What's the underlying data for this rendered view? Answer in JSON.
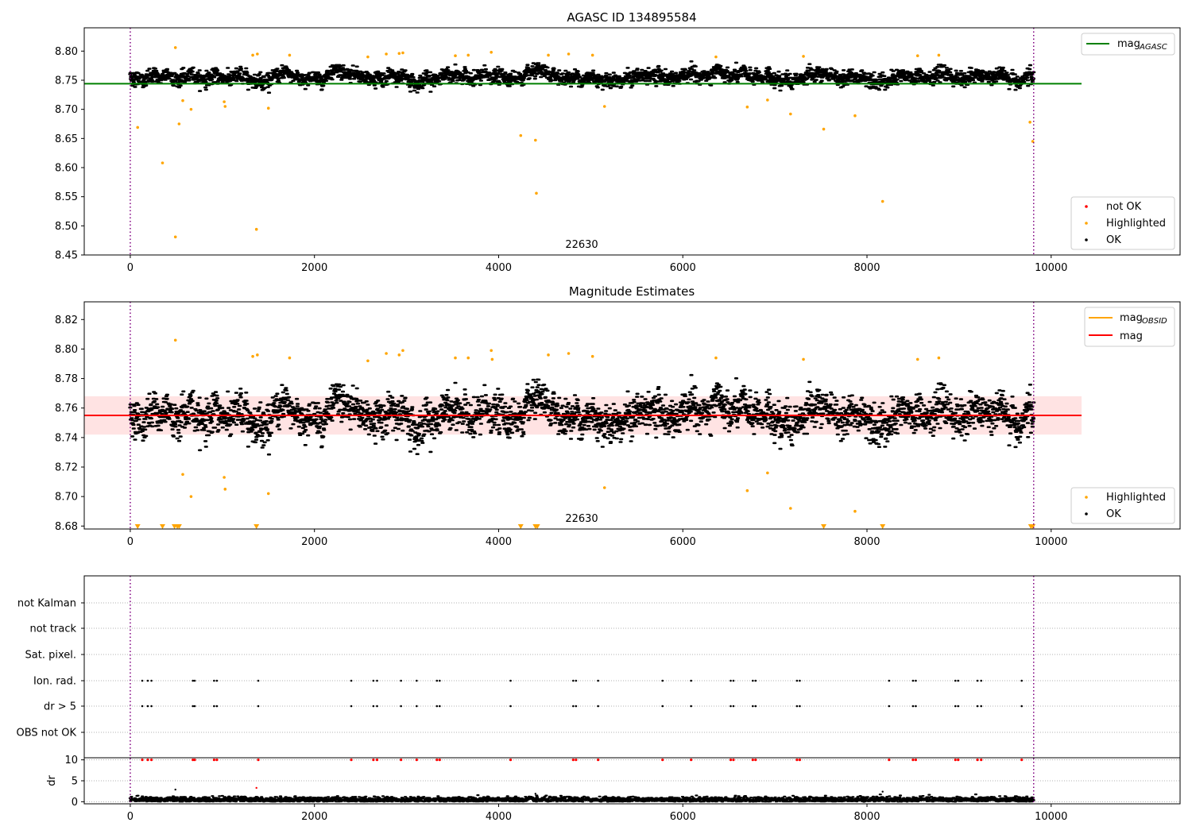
{
  "chart_data": [
    {
      "type": "scatter",
      "title": "AGASC ID 134895584",
      "xlim": [
        -500,
        11400
      ],
      "ylim": [
        8.45,
        8.84
      ],
      "x_ticks": [
        0,
        2000,
        4000,
        6000,
        8000,
        10000
      ],
      "y_ticks": [
        8.45,
        8.5,
        8.55,
        8.6,
        8.65,
        8.7,
        8.75,
        8.8
      ],
      "grid": false,
      "annotation": "22630",
      "vlines": [
        0,
        9810
      ],
      "hline": {
        "name": "mag$_{AGASC}$",
        "display_name": "mag",
        "subscript": "AGASC",
        "y": 8.744,
        "x_range": [
          -500,
          10330
        ],
        "color": "#008000"
      },
      "legend_lines": [
        {
          "name": "mag",
          "subscript": "AGASC",
          "color": "#008000"
        }
      ],
      "legend_lines_placement": "top-right",
      "legend_points": [
        {
          "name": "not OK",
          "color": "#ff0000"
        },
        {
          "name": "Highlighted",
          "color": "#ffa500"
        },
        {
          "name": "OK",
          "color": "#000000"
        }
      ],
      "legend_points_placement": "lower-right",
      "series": [
        {
          "name": "OK",
          "color": "#000000",
          "x_range": [
            0,
            9810
          ],
          "y_mean": 8.755,
          "y_spread": 0.012
        },
        {
          "name": "Highlighted",
          "color": "#ffa500",
          "points": [
            [
              80,
              8.669
            ],
            [
              350,
              8.608
            ],
            [
              490,
              8.806
            ],
            [
              490,
              8.481
            ],
            [
              530,
              8.675
            ],
            [
              570,
              8.715
            ],
            [
              660,
              8.7
            ],
            [
              1020,
              8.713
            ],
            [
              1030,
              8.705
            ],
            [
              1330,
              8.793
            ],
            [
              1370,
              8.494
            ],
            [
              1380,
              8.795
            ],
            [
              1500,
              8.702
            ],
            [
              1730,
              8.793
            ],
            [
              2580,
              8.79
            ],
            [
              2780,
              8.795
            ],
            [
              2920,
              8.796
            ],
            [
              2960,
              8.797
            ],
            [
              3530,
              8.792
            ],
            [
              3670,
              8.793
            ],
            [
              3920,
              8.798
            ],
            [
              4240,
              8.655
            ],
            [
              4400,
              8.647
            ],
            [
              4410,
              8.556
            ],
            [
              4540,
              8.793
            ],
            [
              4760,
              8.795
            ],
            [
              5020,
              8.793
            ],
            [
              5150,
              8.705
            ],
            [
              6360,
              8.79
            ],
            [
              6700,
              8.704
            ],
            [
              6920,
              8.716
            ],
            [
              7170,
              8.692
            ],
            [
              7310,
              8.791
            ],
            [
              7530,
              8.666
            ],
            [
              7870,
              8.689
            ],
            [
              8170,
              8.542
            ],
            [
              8550,
              8.792
            ],
            [
              8780,
              8.793
            ],
            [
              9770,
              8.678
            ],
            [
              9800,
              8.645
            ]
          ]
        }
      ]
    },
    {
      "type": "scatter",
      "title": "Magnitude Estimates",
      "xlim": [
        -500,
        11400
      ],
      "ylim": [
        8.678,
        8.832
      ],
      "x_ticks": [
        0,
        2000,
        4000,
        6000,
        8000,
        10000
      ],
      "y_ticks": [
        8.68,
        8.7,
        8.72,
        8.74,
        8.76,
        8.78,
        8.8,
        8.82
      ],
      "grid": false,
      "annotation": "22630",
      "vlines": [
        0,
        9810
      ],
      "band": {
        "y_low": 8.742,
        "y_high": 8.768,
        "x_range": [
          -500,
          10330
        ],
        "color": "#ff9999"
      },
      "hline": {
        "name": "mag",
        "y": 8.755,
        "x_range": [
          -500,
          10330
        ],
        "color": "#ff0000"
      },
      "obsid_line": {
        "name": "mag$_{OBSID}$",
        "display_name": "mag",
        "subscript": "OBSID",
        "y": 8.755,
        "x_range": [
          0,
          9810
        ],
        "color": "#ffa500"
      },
      "legend_lines": [
        {
          "name": "mag",
          "subscript": "OBSID",
          "color": "#ffa500"
        },
        {
          "name": "mag",
          "subscript": "",
          "color": "#ff0000"
        }
      ],
      "legend_lines_placement": "top-right",
      "legend_points": [
        {
          "name": "Highlighted",
          "color": "#ffa500"
        },
        {
          "name": "OK",
          "color": "#000000"
        }
      ],
      "legend_points_placement": "lower-right",
      "series": [
        {
          "name": "OK",
          "color": "#000000",
          "x_range": [
            0,
            9810
          ],
          "y_mean": 8.755,
          "y_spread": 0.012
        },
        {
          "name": "Highlighted",
          "color": "#ffa500",
          "points": [
            [
              490,
              8.806
            ],
            [
              570,
              8.715
            ],
            [
              660,
              8.7
            ],
            [
              1020,
              8.713
            ],
            [
              1030,
              8.705
            ],
            [
              1330,
              8.795
            ],
            [
              1380,
              8.796
            ],
            [
              1500,
              8.702
            ],
            [
              1730,
              8.794
            ],
            [
              2580,
              8.792
            ],
            [
              2780,
              8.797
            ],
            [
              2920,
              8.796
            ],
            [
              2960,
              8.799
            ],
            [
              3530,
              8.794
            ],
            [
              3670,
              8.794
            ],
            [
              3920,
              8.799
            ],
            [
              3930,
              8.793
            ],
            [
              4540,
              8.796
            ],
            [
              4760,
              8.797
            ],
            [
              5020,
              8.795
            ],
            [
              5150,
              8.706
            ],
            [
              6360,
              8.794
            ],
            [
              6700,
              8.704
            ],
            [
              6920,
              8.716
            ],
            [
              7170,
              8.692
            ],
            [
              7310,
              8.793
            ],
            [
              7870,
              8.69
            ],
            [
              8550,
              8.793
            ],
            [
              8780,
              8.794
            ]
          ]
        },
        {
          "name": "Highlighted (off scale)",
          "color": "#ffa500",
          "marker": "triangle-down",
          "x": [
            80,
            350,
            480,
            510,
            530,
            1370,
            4240,
            4400,
            4420,
            7530,
            8170,
            9780,
            9800
          ]
        }
      ]
    },
    {
      "type": "scatter",
      "title": "",
      "xlim": [
        -500,
        11400
      ],
      "x_ticks": [
        0,
        2000,
        4000,
        6000,
        8000,
        10000
      ],
      "vlines": [
        0,
        9810
      ],
      "flag_rows": [
        "not Kalman",
        "not track",
        "Sat. pixel.",
        "Ion. rad.",
        "dr > 5",
        "OBS not OK"
      ],
      "flags": {
        "Ion. rad.": [
          130,
          190,
          230,
          680,
          700,
          910,
          940,
          1390,
          2400,
          2640,
          2680,
          2940,
          3110,
          3330,
          3360,
          4130,
          4810,
          4840,
          5080,
          5780,
          6090,
          6520,
          6550,
          6760,
          6790,
          7240,
          7270,
          8240,
          8500,
          8530,
          8960,
          8990,
          9200,
          9240,
          9680
        ],
        "dr > 5": [
          130,
          190,
          230,
          680,
          700,
          910,
          940,
          1390,
          2400,
          2640,
          2680,
          2940,
          3110,
          3330,
          3360,
          4130,
          4810,
          4840,
          5080,
          5780,
          6090,
          6520,
          6550,
          6760,
          6790,
          7240,
          7270,
          8240,
          8500,
          8530,
          8960,
          8990,
          9200,
          9240,
          9680
        ]
      },
      "dr_panel": {
        "ylabel": "dr",
        "ylim": [
          -0.5,
          10.5
        ],
        "y_ticks": [
          0,
          5,
          10
        ],
        "grid": "dotted",
        "ok_series": {
          "name": "OK",
          "color": "#000000",
          "x_range": [
            0,
            9810
          ],
          "y_mean": 0.5
        },
        "capped_points": {
          "color": "#ff0000",
          "y": 10
        },
        "outliers": [
          [
            490,
            2.9
          ],
          [
            1370,
            3.3
          ],
          [
            4400,
            1.9
          ],
          [
            8170,
            2.4
          ]
        ]
      }
    }
  ]
}
